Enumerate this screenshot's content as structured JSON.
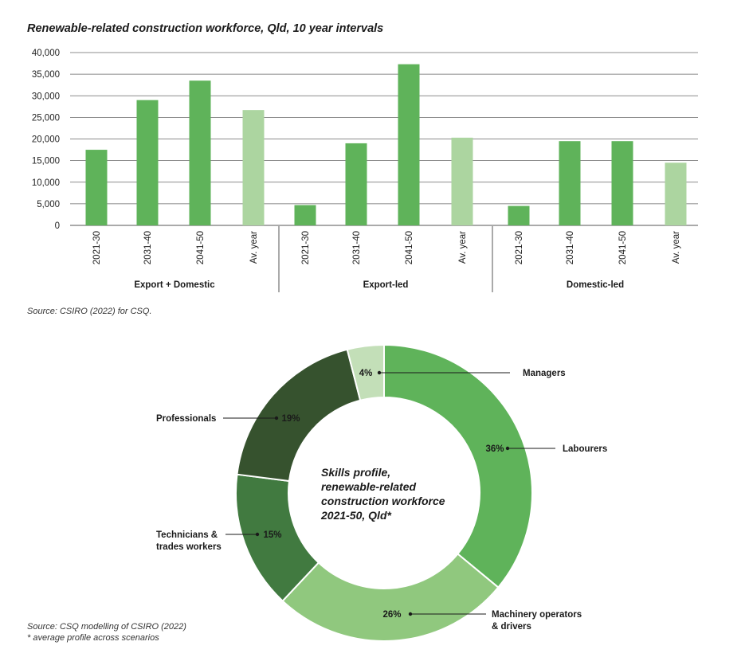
{
  "bar_chart": {
    "title": "Renewable-related construction workforce, Qld, 10 year intervals",
    "source": "Source: CSIRO (2022) for CSQ."
  },
  "donut_chart": {
    "source_line1": "Source: CSQ modelling of CSIRO (2022)",
    "source_line2": "* average profile across scenarios",
    "center_text": [
      "Skills profile,",
      "renewable-related",
      "construction workforce",
      "2021-50, Qld*"
    ]
  },
  "chart_data": [
    {
      "type": "bar",
      "title": "Renewable-related construction workforce, Qld, 10 year intervals",
      "ylim": [
        0,
        40000
      ],
      "yticks": [
        "0",
        "5,000",
        "10,000",
        "15,000",
        "20,000",
        "25,000",
        "30,000",
        "35,000",
        "40,000"
      ],
      "grid": true,
      "groups": [
        {
          "name": "Export + Domestic",
          "categories": [
            "2021-30",
            "2031-40",
            "2041-50",
            "Av. year"
          ],
          "values": [
            17500,
            29000,
            33500,
            26700
          ]
        },
        {
          "name": "Export-led",
          "categories": [
            "2021-30",
            "2031-40",
            "2041-50",
            "Av. year"
          ],
          "values": [
            4700,
            19000,
            37300,
            20300
          ]
        },
        {
          "name": "Domestic-led",
          "categories": [
            "2021-30",
            "2031-40",
            "2041-50",
            "Av. year"
          ],
          "values": [
            4500,
            19500,
            19500,
            14500
          ]
        }
      ],
      "colors": {
        "decade": "#5fb35a",
        "average": "#acd5a0"
      }
    },
    {
      "type": "pie",
      "title": "Skills profile, renewable-related construction workforce 2021-50, Qld*",
      "slices": [
        {
          "label": "Labourers",
          "value": 36,
          "pct_label": "36%",
          "color": "#5fb35a"
        },
        {
          "label": "Machinery operators & drivers",
          "value": 26,
          "pct_label": "26%",
          "color": "#90c87e"
        },
        {
          "label": "Technicians & trades workers",
          "value": 15,
          "pct_label": "15%",
          "color": "#417a40"
        },
        {
          "label": "Professionals",
          "value": 19,
          "pct_label": "19%",
          "color": "#36522e"
        },
        {
          "label": "Managers",
          "value": 4,
          "pct_label": "4%",
          "color": "#c3dfb8"
        }
      ]
    }
  ]
}
